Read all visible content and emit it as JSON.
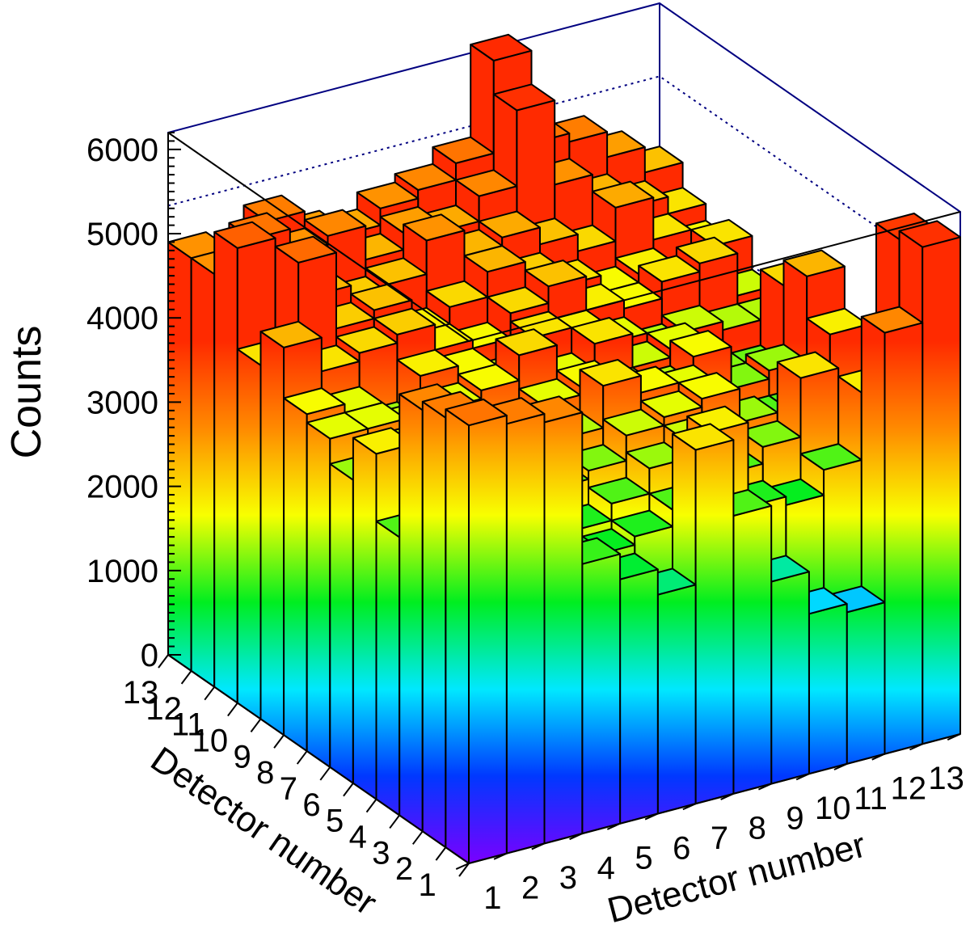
{
  "chart_data": {
    "type": "lego3d",
    "title": "",
    "xlabel": "Detector number",
    "ylabel": "Detector number",
    "zlabel": "Counts",
    "x_ticks": [
      "1",
      "2",
      "3",
      "4",
      "5",
      "6",
      "7",
      "8",
      "9",
      "10",
      "11",
      "12",
      "13"
    ],
    "y_ticks": [
      "1",
      "2",
      "3",
      "4",
      "5",
      "6",
      "7",
      "8",
      "9",
      "10",
      "11",
      "12",
      "13"
    ],
    "z_ticks": [
      "0",
      "1000",
      "2000",
      "3000",
      "4000",
      "5000",
      "6000"
    ],
    "zlim": [
      0,
      6200
    ],
    "grid": false,
    "legend": "none",
    "color_scale": [
      "#7a00ff",
      "#0038ff",
      "#00e8ff",
      "#00ee20",
      "#f8ff00",
      "#ff8a00",
      "#ff2a00"
    ],
    "matrix_note": "values[y-1][x-1], x = front-right axis detector, y = front-left axis detector",
    "values": [
      [
        5200,
        5100,
        5000,
        3200,
        2900,
        2600,
        4200,
        3300,
        2400,
        1900,
        1800,
        5000,
        5900
      ],
      [
        5100,
        3400,
        3300,
        3100,
        3000,
        3100,
        3300,
        4100,
        3100,
        3000,
        3300,
        4100,
        5800
      ],
      [
        5000,
        3500,
        3400,
        3200,
        3100,
        3300,
        3600,
        3800,
        3300,
        3500,
        4200,
        3300,
        3500
      ],
      [
        3300,
        3400,
        3600,
        3700,
        3400,
        3500,
        3800,
        3900,
        4000,
        3600,
        3300,
        3400,
        3300
      ],
      [
        4100,
        3700,
        3800,
        3600,
        3500,
        3700,
        4200,
        4000,
        3900,
        3400,
        3300,
        3300,
        4100
      ],
      [
        3600,
        3800,
        3700,
        3800,
        3700,
        3900,
        4000,
        3800,
        3700,
        4000,
        3500,
        3600,
        4600
      ],
      [
        3900,
        3900,
        3800,
        3900,
        4000,
        4300,
        3900,
        4200,
        3800,
        3900,
        3500,
        3400,
        4300
      ],
      [
        4000,
        3900,
        3600,
        4100,
        4000,
        3800,
        4200,
        4100,
        3900,
        3700,
        3800,
        3700,
        3700
      ],
      [
        4600,
        4200,
        4300,
        4400,
        4100,
        4000,
        4300,
        4500,
        4100,
        4000,
        4200,
        4300,
        3800
      ],
      [
        4200,
        5300,
        4400,
        4500,
        4100,
        4300,
        4600,
        4400,
        4200,
        4000,
        4100,
        3800,
        4200
      ],
      [
        5400,
        4800,
        4600,
        4400,
        4500,
        4900,
        4600,
        4700,
        4500,
        4300,
        4700,
        4200,
        4000
      ],
      [
        4900,
        5200,
        4900,
        5000,
        4600,
        4800,
        4700,
        5000,
        5900,
        4900,
        4600,
        4400,
        4200
      ],
      [
        4900,
        4700,
        5100,
        4800,
        4700,
        4900,
        5000,
        5200,
        6300,
        5200,
        5100,
        4800,
        4500
      ]
    ]
  }
}
